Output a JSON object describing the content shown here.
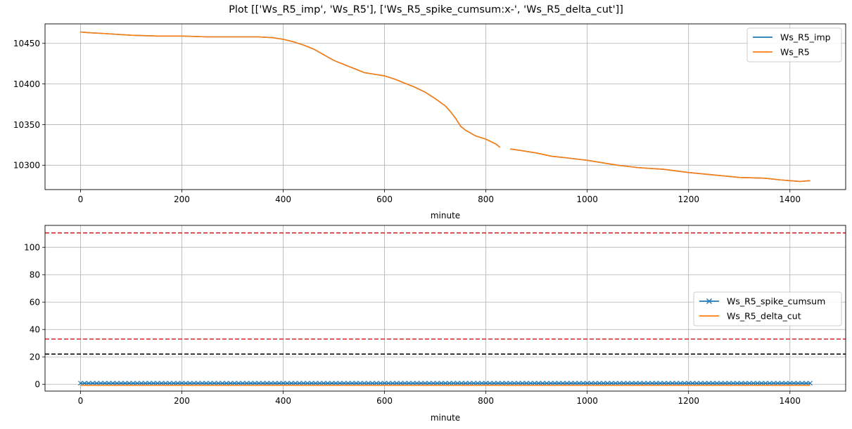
{
  "title": "Plot [['Ws_R5_imp', 'Ws_R5'], ['Ws_R5_spike_cumsum:x-', 'Ws_R5_delta_cut']]",
  "colors": {
    "blue": "#1f77b4",
    "orange": "#ff7f0e",
    "red": "#d62728",
    "black": "#000000",
    "grid": "#b0b0b0"
  },
  "chart_data": [
    {
      "type": "line",
      "xlabel": "minute",
      "ylabel": "",
      "xlim": [
        -70,
        1510
      ],
      "ylim": [
        10270,
        10474
      ],
      "xticks": [
        0,
        200,
        400,
        600,
        800,
        1000,
        1200,
        1400
      ],
      "yticks": [
        10300,
        10350,
        10400,
        10450
      ],
      "grid": true,
      "legend_position": "top-right",
      "series": [
        {
          "name": "Ws_R5_imp",
          "color": "#1f77b4",
          "style": "solid",
          "x": [
            0,
            20,
            50,
            100,
            150,
            200,
            250,
            300,
            350,
            380,
            400,
            420,
            440,
            460,
            480,
            500,
            520,
            540,
            560,
            580,
            600,
            620,
            640,
            660,
            680,
            700,
            720,
            730,
            740,
            750,
            760,
            780,
            800,
            820,
            828,
            null,
            848,
            870,
            900,
            930,
            960,
            1000,
            1030,
            1060,
            1100,
            1150,
            1200,
            1250,
            1300,
            1350,
            1380,
            1400,
            1420,
            1440
          ],
          "y": [
            10464,
            10463,
            10462,
            10460,
            10459,
            10459,
            10458,
            10458,
            10458,
            10457,
            10455,
            10452,
            10448,
            10443,
            10436,
            10429,
            10424,
            10419,
            10414,
            10412,
            10410,
            10406,
            10401,
            10396,
            10390,
            10382,
            10373,
            10366,
            10358,
            10348,
            10343,
            10336,
            10332,
            10326,
            10322,
            null,
            10320,
            10318,
            10315,
            10311,
            10309,
            10306,
            10303,
            10300,
            10297,
            10295,
            10291,
            10288,
            10285,
            10284,
            10282,
            10281,
            10280,
            10281
          ]
        },
        {
          "name": "Ws_R5",
          "color": "#ff7f0e",
          "style": "solid",
          "x": [
            0,
            20,
            50,
            100,
            150,
            200,
            250,
            300,
            350,
            380,
            400,
            420,
            440,
            460,
            480,
            500,
            520,
            540,
            560,
            580,
            600,
            620,
            640,
            660,
            680,
            700,
            720,
            730,
            740,
            750,
            760,
            780,
            800,
            820,
            828,
            null,
            848,
            870,
            900,
            930,
            960,
            1000,
            1030,
            1060,
            1100,
            1150,
            1200,
            1250,
            1300,
            1350,
            1380,
            1400,
            1420,
            1440
          ],
          "y": [
            10464,
            10463,
            10462,
            10460,
            10459,
            10459,
            10458,
            10458,
            10458,
            10457,
            10455,
            10452,
            10448,
            10443,
            10436,
            10429,
            10424,
            10419,
            10414,
            10412,
            10410,
            10406,
            10401,
            10396,
            10390,
            10382,
            10373,
            10366,
            10358,
            10348,
            10343,
            10336,
            10332,
            10326,
            10322,
            null,
            10320,
            10318,
            10315,
            10311,
            10309,
            10306,
            10303,
            10300,
            10297,
            10295,
            10291,
            10288,
            10285,
            10284,
            10282,
            10281,
            10280,
            10281
          ]
        }
      ]
    },
    {
      "type": "line",
      "xlabel": "minute",
      "ylabel": "",
      "xlim": [
        -70,
        1510
      ],
      "ylim": [
        -5,
        116
      ],
      "xticks": [
        0,
        200,
        400,
        600,
        800,
        1000,
        1200,
        1400
      ],
      "yticks": [
        0,
        20,
        40,
        60,
        80,
        100
      ],
      "grid": true,
      "legend_position": "center-right",
      "series": [
        {
          "name": "Ws_R5_spike_cumsum",
          "color": "#1f77b4",
          "style": "x-",
          "x": [
            0,
            1440
          ],
          "y": [
            0,
            0
          ]
        },
        {
          "name": "Ws_R5_delta_cut",
          "color": "#ff7f0e",
          "style": "solid",
          "x": [
            0,
            1440
          ],
          "y": [
            0,
            0
          ]
        }
      ],
      "hlines": [
        {
          "y": 110.5,
          "color": "#d62728",
          "style": "dashed"
        },
        {
          "y": 33,
          "color": "#d62728",
          "style": "dashed"
        },
        {
          "y": 22,
          "color": "#000000",
          "style": "dashed"
        }
      ]
    }
  ]
}
